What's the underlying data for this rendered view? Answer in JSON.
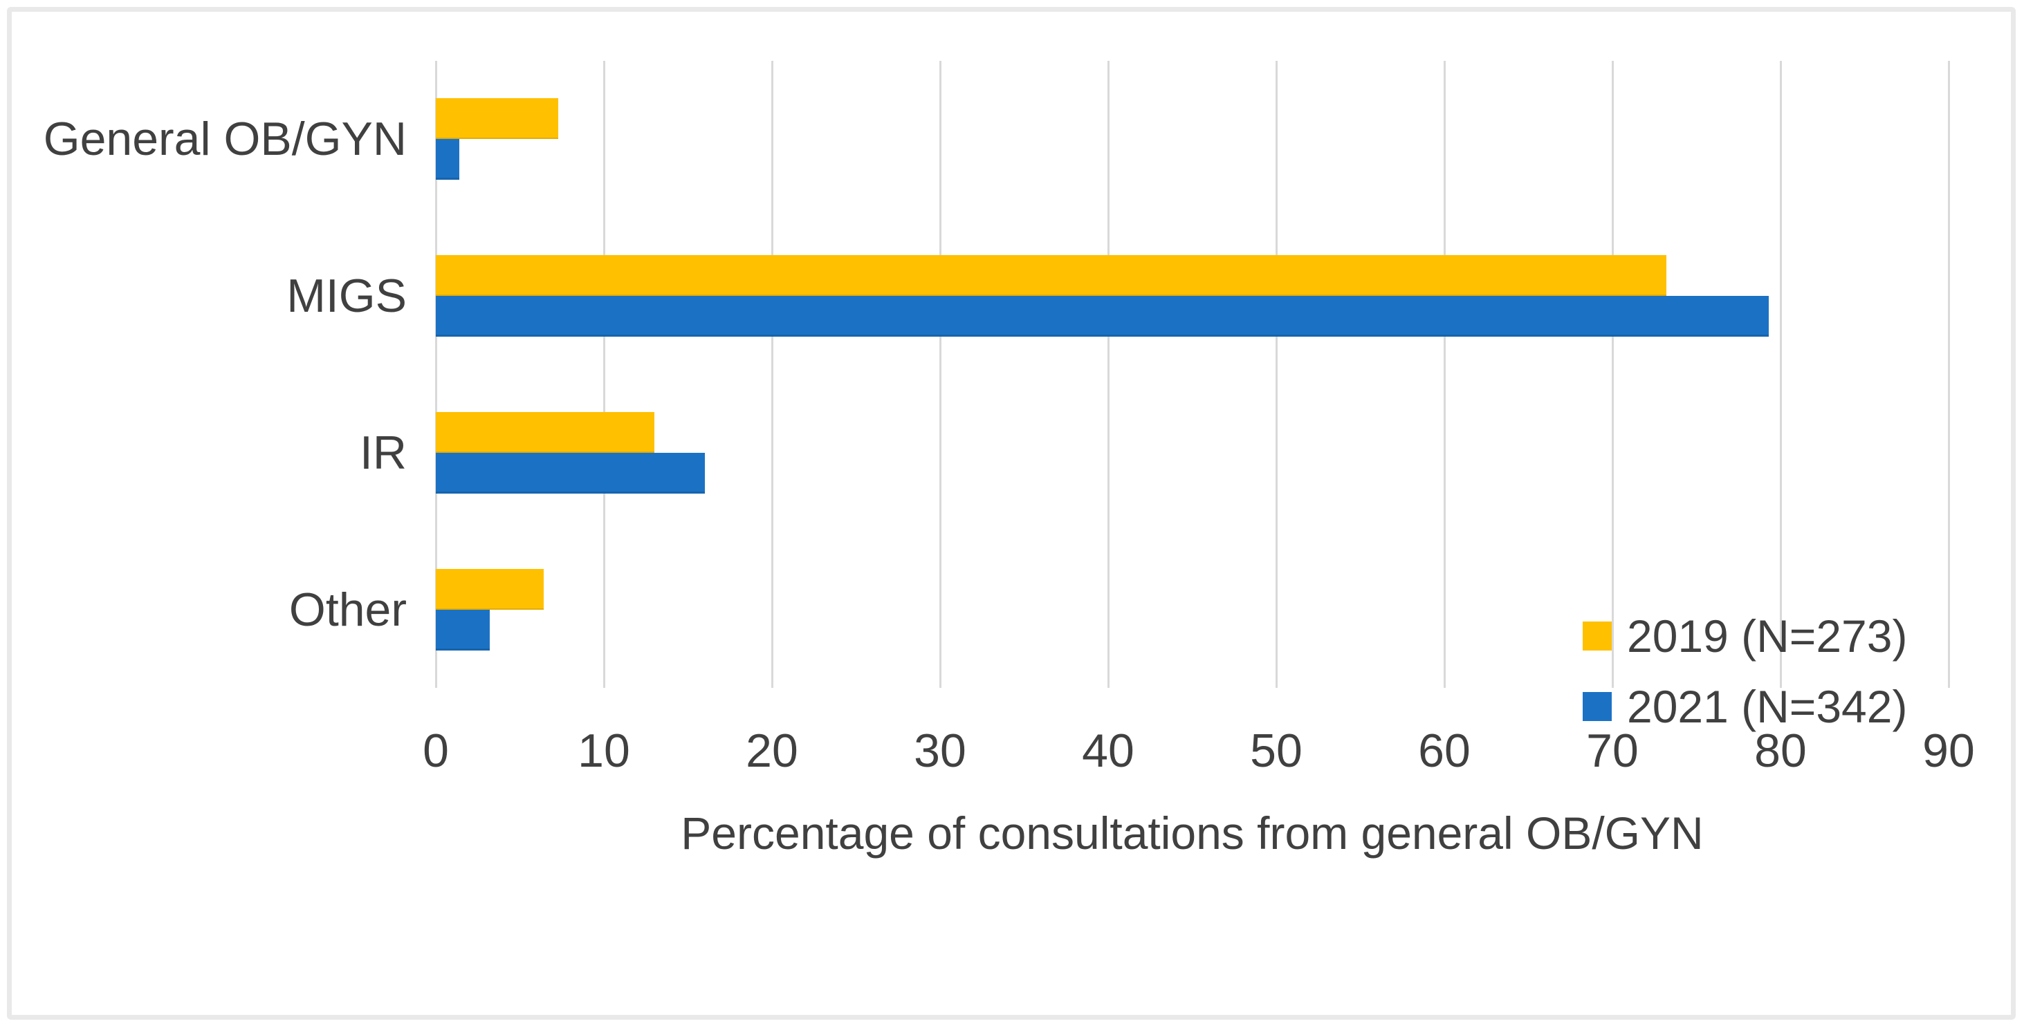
{
  "figure": {
    "background": "#FFFFFF",
    "border_color": "#E9E9E9",
    "gridline_color": "#D9D9D9",
    "text_color": "#404040"
  },
  "chart_data": {
    "type": "bar",
    "orientation": "horizontal",
    "title": "",
    "xlabel": "Percentage of consultations from general OB/GYN",
    "ylabel": "",
    "xlim": [
      0,
      90
    ],
    "xticks": [
      0,
      10,
      20,
      30,
      40,
      50,
      60,
      70,
      80,
      90
    ],
    "grid": true,
    "categories": [
      "General OB/GYN",
      "MIGS",
      "IR",
      "Other"
    ],
    "series": [
      {
        "name": "2019 (N=273)",
        "color": "#FFC000",
        "values": [
          7.3,
          73.2,
          13.0,
          6.4
        ]
      },
      {
        "name": "2021 (N=342)",
        "color": "#1B72C5",
        "values": [
          1.4,
          79.3,
          16.0,
          3.2
        ]
      }
    ],
    "legend_position": "inside-bottom-right",
    "legend_entries": [
      "2019 (N=273)",
      "2021 (N=342)"
    ]
  }
}
